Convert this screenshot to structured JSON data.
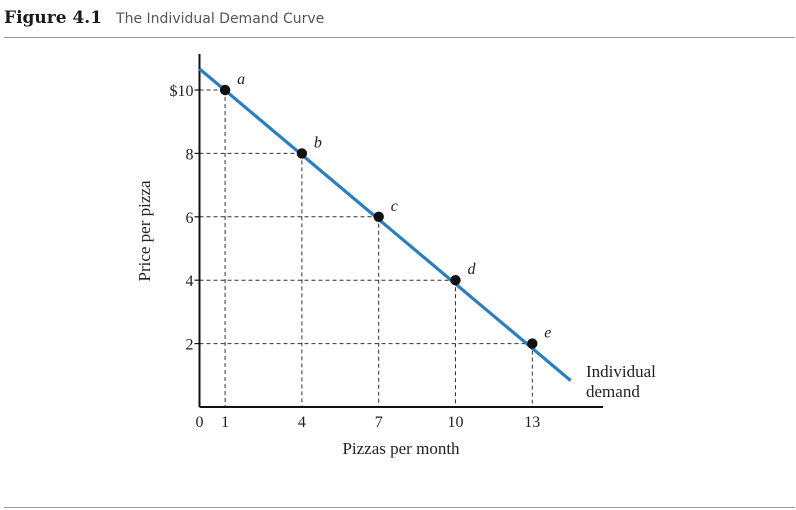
{
  "figure": {
    "label": "Figure 4.1",
    "caption": "The Individual Demand Curve"
  },
  "chart_data": {
    "type": "line",
    "xlabel": "Pizzas per month",
    "ylabel": "Price per pizza",
    "xlim": [
      0,
      15
    ],
    "ylim": [
      0,
      11
    ],
    "x_ticks": [
      0,
      1,
      4,
      7,
      10,
      13
    ],
    "x_tick_labels": [
      "0",
      "1",
      "4",
      "7",
      "10",
      "13"
    ],
    "y_ticks": [
      2,
      4,
      6,
      8,
      10
    ],
    "y_tick_labels": [
      "2",
      "4",
      "6",
      "8",
      "$10"
    ],
    "series": [
      {
        "name": "Individual demand",
        "color": "#2a7fc1",
        "line_x": [
          0,
          14.5
        ],
        "line_y": [
          10.667,
          0.833
        ],
        "points": [
          {
            "label": "a",
            "x": 1,
            "y": 10
          },
          {
            "label": "b",
            "x": 4,
            "y": 8
          },
          {
            "label": "c",
            "x": 7,
            "y": 6
          },
          {
            "label": "d",
            "x": 10,
            "y": 4
          },
          {
            "label": "e",
            "x": 13,
            "y": 2
          }
        ]
      }
    ],
    "curve_label_lines": [
      "Individual",
      "demand"
    ],
    "grid": "dashed guide lines from each point to both axes"
  }
}
